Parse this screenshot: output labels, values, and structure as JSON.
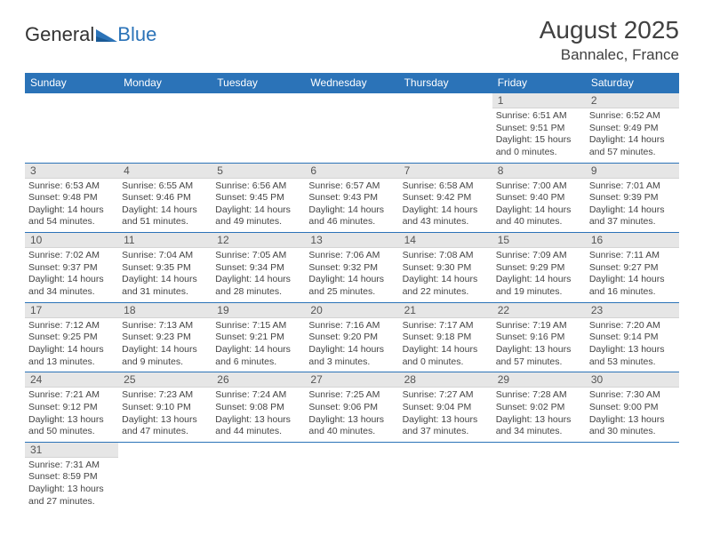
{
  "logo": {
    "text1": "General",
    "text2": "Blue"
  },
  "title": "August 2025",
  "location": "Bannalec, France",
  "colors": {
    "header_bg": "#2b73b8",
    "header_text": "#ffffff",
    "daynum_bg": "#e6e6e6",
    "border": "#2b73b8",
    "text": "#444444"
  },
  "daynames": [
    "Sunday",
    "Monday",
    "Tuesday",
    "Wednesday",
    "Thursday",
    "Friday",
    "Saturday"
  ],
  "weeks": [
    [
      null,
      null,
      null,
      null,
      null,
      {
        "n": "1",
        "sr": "6:51 AM",
        "ss": "9:51 PM",
        "dl": "15 hours and 0 minutes."
      },
      {
        "n": "2",
        "sr": "6:52 AM",
        "ss": "9:49 PM",
        "dl": "14 hours and 57 minutes."
      }
    ],
    [
      {
        "n": "3",
        "sr": "6:53 AM",
        "ss": "9:48 PM",
        "dl": "14 hours and 54 minutes."
      },
      {
        "n": "4",
        "sr": "6:55 AM",
        "ss": "9:46 PM",
        "dl": "14 hours and 51 minutes."
      },
      {
        "n": "5",
        "sr": "6:56 AM",
        "ss": "9:45 PM",
        "dl": "14 hours and 49 minutes."
      },
      {
        "n": "6",
        "sr": "6:57 AM",
        "ss": "9:43 PM",
        "dl": "14 hours and 46 minutes."
      },
      {
        "n": "7",
        "sr": "6:58 AM",
        "ss": "9:42 PM",
        "dl": "14 hours and 43 minutes."
      },
      {
        "n": "8",
        "sr": "7:00 AM",
        "ss": "9:40 PM",
        "dl": "14 hours and 40 minutes."
      },
      {
        "n": "9",
        "sr": "7:01 AM",
        "ss": "9:39 PM",
        "dl": "14 hours and 37 minutes."
      }
    ],
    [
      {
        "n": "10",
        "sr": "7:02 AM",
        "ss": "9:37 PM",
        "dl": "14 hours and 34 minutes."
      },
      {
        "n": "11",
        "sr": "7:04 AM",
        "ss": "9:35 PM",
        "dl": "14 hours and 31 minutes."
      },
      {
        "n": "12",
        "sr": "7:05 AM",
        "ss": "9:34 PM",
        "dl": "14 hours and 28 minutes."
      },
      {
        "n": "13",
        "sr": "7:06 AM",
        "ss": "9:32 PM",
        "dl": "14 hours and 25 minutes."
      },
      {
        "n": "14",
        "sr": "7:08 AM",
        "ss": "9:30 PM",
        "dl": "14 hours and 22 minutes."
      },
      {
        "n": "15",
        "sr": "7:09 AM",
        "ss": "9:29 PM",
        "dl": "14 hours and 19 minutes."
      },
      {
        "n": "16",
        "sr": "7:11 AM",
        "ss": "9:27 PM",
        "dl": "14 hours and 16 minutes."
      }
    ],
    [
      {
        "n": "17",
        "sr": "7:12 AM",
        "ss": "9:25 PM",
        "dl": "14 hours and 13 minutes."
      },
      {
        "n": "18",
        "sr": "7:13 AM",
        "ss": "9:23 PM",
        "dl": "14 hours and 9 minutes."
      },
      {
        "n": "19",
        "sr": "7:15 AM",
        "ss": "9:21 PM",
        "dl": "14 hours and 6 minutes."
      },
      {
        "n": "20",
        "sr": "7:16 AM",
        "ss": "9:20 PM",
        "dl": "14 hours and 3 minutes."
      },
      {
        "n": "21",
        "sr": "7:17 AM",
        "ss": "9:18 PM",
        "dl": "14 hours and 0 minutes."
      },
      {
        "n": "22",
        "sr": "7:19 AM",
        "ss": "9:16 PM",
        "dl": "13 hours and 57 minutes."
      },
      {
        "n": "23",
        "sr": "7:20 AM",
        "ss": "9:14 PM",
        "dl": "13 hours and 53 minutes."
      }
    ],
    [
      {
        "n": "24",
        "sr": "7:21 AM",
        "ss": "9:12 PM",
        "dl": "13 hours and 50 minutes."
      },
      {
        "n": "25",
        "sr": "7:23 AM",
        "ss": "9:10 PM",
        "dl": "13 hours and 47 minutes."
      },
      {
        "n": "26",
        "sr": "7:24 AM",
        "ss": "9:08 PM",
        "dl": "13 hours and 44 minutes."
      },
      {
        "n": "27",
        "sr": "7:25 AM",
        "ss": "9:06 PM",
        "dl": "13 hours and 40 minutes."
      },
      {
        "n": "28",
        "sr": "7:27 AM",
        "ss": "9:04 PM",
        "dl": "13 hours and 37 minutes."
      },
      {
        "n": "29",
        "sr": "7:28 AM",
        "ss": "9:02 PM",
        "dl": "13 hours and 34 minutes."
      },
      {
        "n": "30",
        "sr": "7:30 AM",
        "ss": "9:00 PM",
        "dl": "13 hours and 30 minutes."
      }
    ],
    [
      {
        "n": "31",
        "sr": "7:31 AM",
        "ss": "8:59 PM",
        "dl": "13 hours and 27 minutes."
      },
      null,
      null,
      null,
      null,
      null,
      null
    ]
  ],
  "labels": {
    "sunrise": "Sunrise: ",
    "sunset": "Sunset: ",
    "daylight": "Daylight: "
  }
}
